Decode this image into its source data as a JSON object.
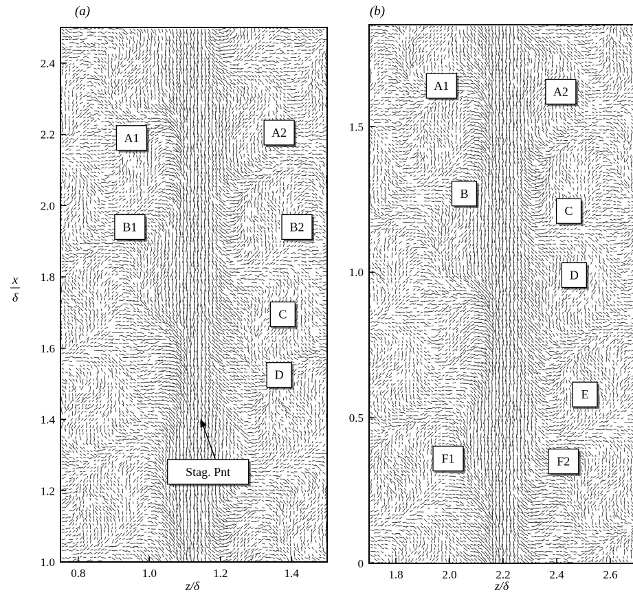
{
  "panels": [
    {
      "label": "(a)",
      "xlabel": "z/δ",
      "ylabel_num": "x",
      "ylabel_den": "δ",
      "xlim": [
        0.75,
        1.5
      ],
      "ylim": [
        1.0,
        2.5
      ],
      "xticks": [
        "0.8",
        "1.0",
        "1.2",
        "1.4"
      ],
      "yticks": [
        "1.0",
        "1.2",
        "1.4",
        "1.6",
        "1.8",
        "2.0",
        "2.2",
        "2.4"
      ],
      "annotations": [
        {
          "text": "A1",
          "z": 0.95,
          "x": 2.19
        },
        {
          "text": "A2",
          "z": 1.365,
          "x": 2.205
        },
        {
          "text": "B1",
          "z": 0.945,
          "x": 1.94
        },
        {
          "text": "B2",
          "z": 1.415,
          "x": 1.94
        },
        {
          "text": "C",
          "z": 1.375,
          "x": 1.695
        },
        {
          "text": "D",
          "z": 1.365,
          "x": 1.525
        },
        {
          "text": "Stag. Pnt",
          "z": 1.165,
          "x": 1.253
        }
      ],
      "arrow": {
        "from_z": 1.185,
        "from_x": 1.29,
        "to_z": 1.145,
        "to_x": 1.4
      }
    },
    {
      "label": "(b)",
      "xlabel": "z/δ",
      "xlim": [
        1.7,
        2.7
      ],
      "ylim": [
        0,
        1.85
      ],
      "xticks": [
        "1.8",
        "2.0",
        "2.2",
        "2.4",
        "2.6"
      ],
      "yticks": [
        "0",
        "0.5",
        "1.0",
        "1.5"
      ],
      "annotations": [
        {
          "text": "A1",
          "z": 1.97,
          "x": 1.64
        },
        {
          "text": "A2",
          "z": 2.415,
          "x": 1.62
        },
        {
          "text": "B",
          "z": 2.055,
          "x": 1.27
        },
        {
          "text": "C",
          "z": 2.445,
          "x": 1.21
        },
        {
          "text": "D",
          "z": 2.465,
          "x": 0.99
        },
        {
          "text": "E",
          "z": 2.505,
          "x": 0.58
        },
        {
          "text": "F1",
          "z": 1.995,
          "x": 0.36
        },
        {
          "text": "F2",
          "z": 2.425,
          "x": 0.35
        }
      ]
    }
  ]
}
